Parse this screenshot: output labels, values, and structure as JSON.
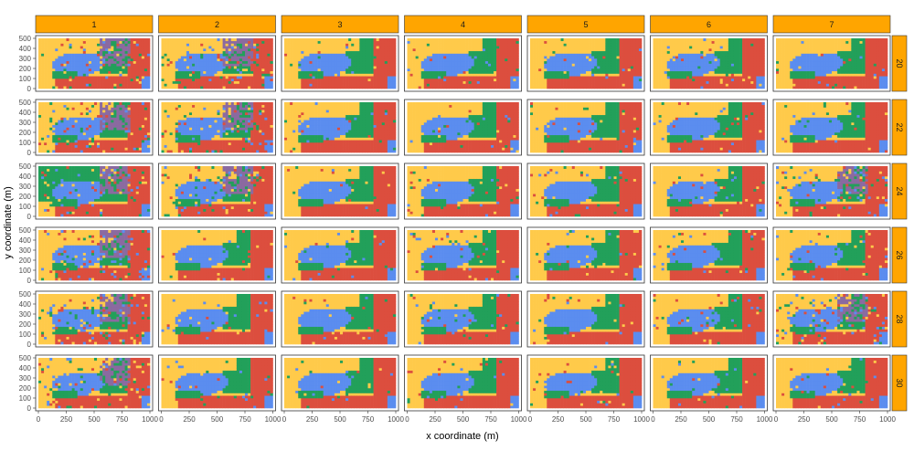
{
  "chart_data": {
    "type": "heatmap",
    "title": "",
    "xlabel": "x coordinate (m)",
    "ylabel": "y coordinate (m)",
    "xlim": [
      0,
      1000
    ],
    "ylim": [
      0,
      500
    ],
    "x_ticks": [
      "0",
      "250",
      "500",
      "750",
      "1000"
    ],
    "y_ticks": [
      "0",
      "100",
      "200",
      "300",
      "400",
      "500"
    ],
    "column_facets": [
      "1",
      "2",
      "3",
      "4",
      "5",
      "6",
      "7"
    ],
    "row_facets": [
      "20",
      "22",
      "24",
      "26",
      "28",
      "30"
    ],
    "category_colors": {
      "yellow": "#FFCA4A",
      "green": "#22A05A",
      "blue": "#5B8DEF",
      "red": "#DC4E3E",
      "purple": "#8B6AA0"
    },
    "strip_color": "#FFA500",
    "grid": false,
    "legend": "none"
  }
}
